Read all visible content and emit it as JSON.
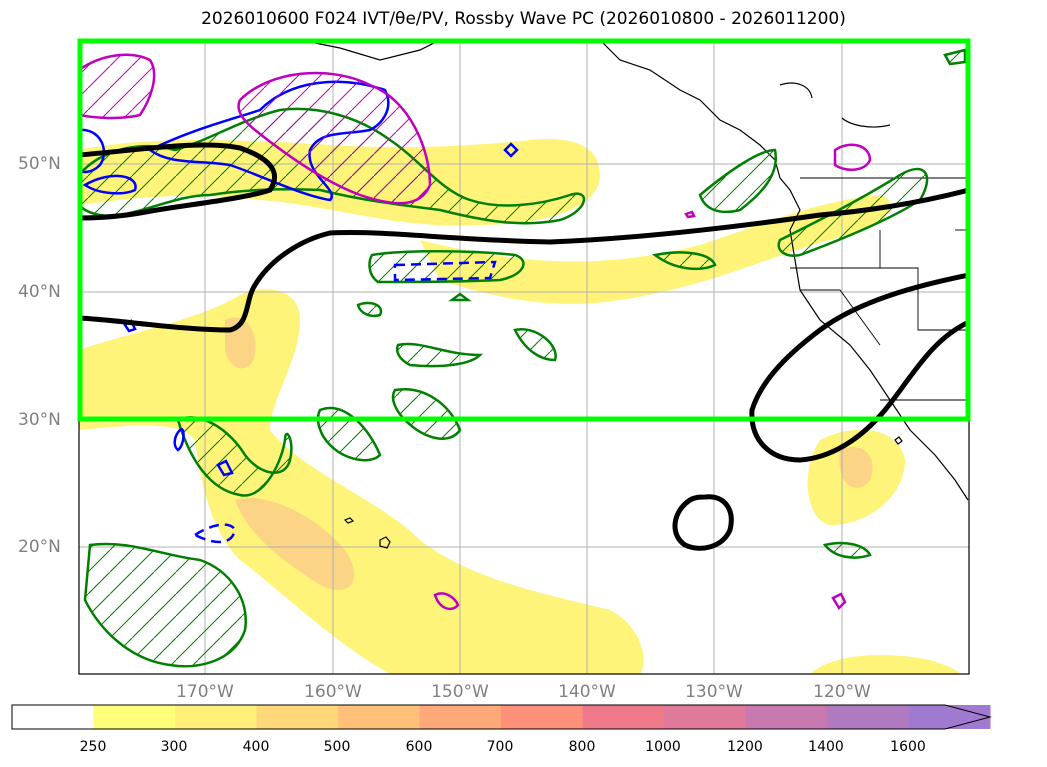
{
  "title": "2026010600 F024 IVT/θe/PV, Rossby Wave PC (2026010800 - 2026011200)",
  "map": {
    "lat_labels": [
      "50°N",
      "40°N",
      "30°N",
      "20°N"
    ],
    "lon_labels": [
      "170°W",
      "160°W",
      "150°W",
      "140°W",
      "130°W",
      "120°W"
    ],
    "extent": {
      "lon": [
        -180,
        -110
      ],
      "lat": [
        10,
        60
      ]
    },
    "highlight_box": {
      "lon": [
        -180,
        -110
      ],
      "lat": [
        30,
        60
      ],
      "color": "#00ff00"
    },
    "gridlines": true
  },
  "colorbar": {
    "ticks": [
      "250",
      "300",
      "400",
      "500",
      "600",
      "700",
      "800",
      "1000",
      "1200",
      "1400",
      "1600"
    ],
    "colors": [
      "#ffff7a",
      "#fff07a",
      "#ffd87a",
      "#ffc07a",
      "#ffa87a",
      "#ff907a",
      "#f07a8a",
      "#e07a9a",
      "#c87ab0",
      "#b07ac0",
      "#a07ad0"
    ],
    "extend": "max"
  },
  "colors": {
    "ivt_fill": "#fff36b",
    "ivt_core": "#f9c98a",
    "rossby_contour": "#000000",
    "theta_contour": "#008000",
    "pv_contour": "#0000ff",
    "magenta_contour": "#c000c0",
    "coastline": "#000000"
  }
}
